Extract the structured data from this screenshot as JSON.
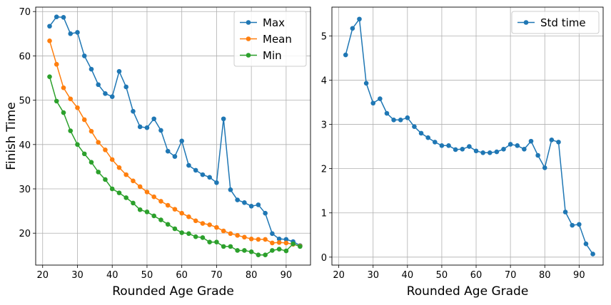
{
  "chart_data": [
    {
      "type": "line",
      "xlabel": "Rounded Age Grade",
      "ylabel": "Finish Time",
      "xlim": [
        18,
        97
      ],
      "ylim": [
        12.8,
        71
      ],
      "xticks": [
        "20",
        "30",
        "40",
        "50",
        "60",
        "70",
        "80",
        "90"
      ],
      "yticks": [
        "20",
        "30",
        "40",
        "50",
        "60",
        "70"
      ],
      "grid": true,
      "legend_position": "top-right",
      "x": [
        22,
        24,
        26,
        28,
        30,
        32,
        34,
        36,
        38,
        40,
        42,
        44,
        46,
        48,
        50,
        52,
        54,
        56,
        58,
        60,
        62,
        64,
        66,
        68,
        70,
        72,
        74,
        76,
        78,
        80,
        82,
        84,
        86,
        88,
        90,
        92,
        94
      ],
      "series": [
        {
          "name": "Max",
          "color": "#1f77b4",
          "values": [
            66.7,
            68.8,
            68.7,
            65.0,
            65.3,
            60.0,
            57.0,
            53.5,
            51.5,
            50.8,
            56.5,
            53.0,
            47.5,
            44.0,
            43.8,
            45.8,
            43.2,
            38.5,
            37.3,
            40.8,
            35.3,
            34.2,
            33.2,
            32.6,
            31.4,
            45.8,
            29.8,
            27.5,
            26.9,
            26.1,
            26.4,
            24.5,
            19.9,
            18.7,
            18.6,
            18.1,
            17.2
          ]
        },
        {
          "name": "Mean",
          "color": "#ff7f0e",
          "values": [
            63.4,
            58.1,
            52.8,
            50.3,
            48.3,
            45.6,
            43.0,
            40.5,
            38.8,
            36.6,
            34.8,
            33.2,
            31.8,
            30.5,
            29.3,
            28.2,
            27.2,
            26.3,
            25.4,
            24.5,
            23.7,
            22.8,
            22.2,
            21.9,
            21.3,
            20.5,
            19.9,
            19.5,
            19.1,
            18.7,
            18.6,
            18.6,
            17.8,
            17.9,
            17.8,
            17.5,
            17.1
          ]
        },
        {
          "name": "Min",
          "color": "#2ca02c",
          "values": [
            55.3,
            49.8,
            47.2,
            43.1,
            40.0,
            37.9,
            36.0,
            33.8,
            32.1,
            30.0,
            29.1,
            28.0,
            26.8,
            25.3,
            24.8,
            23.9,
            23.0,
            22.0,
            21.0,
            20.1,
            19.9,
            19.2,
            19.0,
            18.0,
            18.0,
            17.0,
            17.0,
            16.1,
            16.1,
            15.8,
            15.1,
            15.1,
            16.1,
            16.4,
            16.0,
            17.6,
            17.0
          ]
        }
      ]
    },
    {
      "type": "line",
      "xlabel": "Rounded Age Grade",
      "ylabel": "",
      "xlim": [
        18,
        97
      ],
      "ylim": [
        -0.18,
        5.65
      ],
      "xticks": [
        "20",
        "30",
        "40",
        "50",
        "60",
        "70",
        "80",
        "90"
      ],
      "yticks": [
        "0",
        "1",
        "2",
        "3",
        "4",
        "5"
      ],
      "grid": true,
      "legend_position": "top-right",
      "x": [
        22,
        24,
        26,
        28,
        30,
        32,
        34,
        36,
        38,
        40,
        42,
        44,
        46,
        48,
        50,
        52,
        54,
        56,
        58,
        60,
        62,
        64,
        66,
        68,
        70,
        72,
        74,
        76,
        78,
        80,
        82,
        84,
        86,
        88,
        90,
        92,
        94
      ],
      "series": [
        {
          "name": "Std time",
          "color": "#1f77b4",
          "values": [
            4.57,
            5.17,
            5.38,
            3.93,
            3.48,
            3.58,
            3.25,
            3.1,
            3.1,
            3.15,
            2.95,
            2.8,
            2.7,
            2.6,
            2.52,
            2.52,
            2.43,
            2.44,
            2.5,
            2.4,
            2.36,
            2.36,
            2.38,
            2.44,
            2.55,
            2.52,
            2.44,
            2.62,
            2.3,
            2.02,
            2.65,
            2.6,
            1.02,
            0.72,
            0.74,
            0.3,
            0.07
          ]
        }
      ]
    }
  ]
}
